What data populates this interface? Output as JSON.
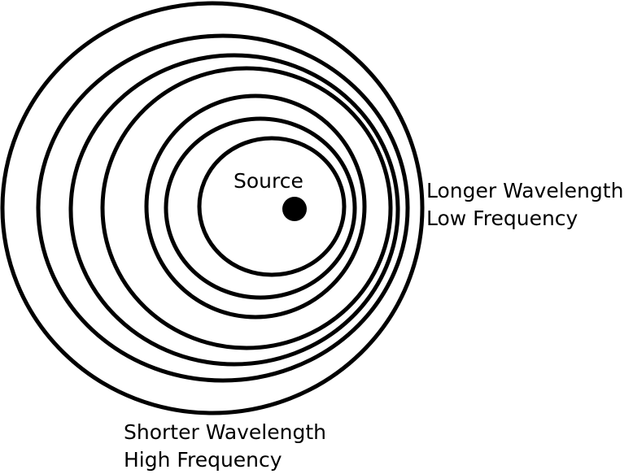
{
  "diagram": {
    "source_label": "Source",
    "right_label": {
      "line1": "Longer Wavelength",
      "line2": "Low Frequency"
    },
    "bottom_label": {
      "line1": "Shorter Wavelength",
      "line2": "High Frequency"
    },
    "wavefront_count": 7,
    "colors": {
      "stroke": "#000000",
      "background": "#ffffff"
    }
  }
}
